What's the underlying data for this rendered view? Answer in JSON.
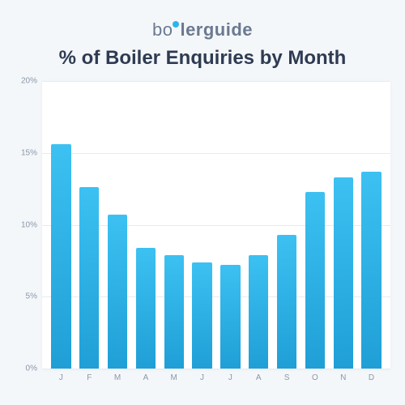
{
  "logo": {
    "light_text": "bo",
    "bold_text": "lerguide",
    "dot_color": "#2bb5e8",
    "light_weight": 300,
    "bold_weight": 700,
    "fontsize": 22,
    "color": "#6b7a90"
  },
  "title": {
    "text": "% of Boiler Enquiries by Month",
    "fontsize": 24,
    "color": "#2e3b52",
    "weight": 700
  },
  "chart": {
    "type": "bar",
    "categories": [
      "J",
      "F",
      "M",
      "A",
      "M",
      "J",
      "J",
      "A",
      "S",
      "O",
      "N",
      "D"
    ],
    "values": [
      15.6,
      12.6,
      10.7,
      8.4,
      7.9,
      7.4,
      7.2,
      7.9,
      9.3,
      12.3,
      13.3,
      13.7
    ],
    "ylim": [
      0,
      20
    ],
    "ytick_step": 5,
    "ytick_suffix": "%",
    "bar_color_top": "#3cc1f2",
    "bar_color_bottom": "#1f9fd6",
    "bar_width": 0.7,
    "background_color": "#ffffff",
    "page_background": "#f4f7fa",
    "grid_color": "#e6ebf1",
    "axis_label_color": "#8a97a8",
    "axis_label_fontsize": 10
  }
}
